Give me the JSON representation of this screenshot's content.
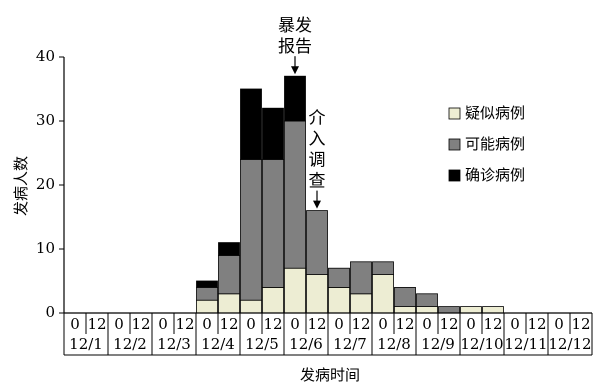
{
  "chart_data": {
    "type": "bar",
    "stacked": true,
    "title": "",
    "ylabel": "发病人数",
    "xlabel": "发病时间",
    "ylim": [
      0,
      40
    ],
    "yticks": [
      0,
      10,
      20,
      30,
      40
    ],
    "grid": false,
    "legend_position": "right",
    "half_day_labels": [
      "0",
      "12"
    ],
    "dates": [
      "12/1",
      "12/2",
      "12/3",
      "12/4",
      "12/5",
      "12/6",
      "12/7",
      "12/8",
      "12/9",
      "12/10",
      "12/11",
      "12/12"
    ],
    "categories": [
      "12/1 0",
      "12/1 12",
      "12/2 0",
      "12/2 12",
      "12/3 0",
      "12/3 12",
      "12/4 0",
      "12/4 12",
      "12/5 0",
      "12/5 12",
      "12/6 0",
      "12/6 12",
      "12/7 0",
      "12/7 12",
      "12/8 0",
      "12/8 12",
      "12/9 0",
      "12/9 12",
      "12/10 0",
      "12/10 12",
      "12/11 0",
      "12/11 12",
      "12/12 0",
      "12/12 12"
    ],
    "series": [
      {
        "name": "疑似病例",
        "color": "#ededd3",
        "values": [
          0,
          0,
          0,
          0,
          0,
          0,
          2,
          3,
          2,
          4,
          7,
          6,
          4,
          3,
          6,
          1,
          1,
          0,
          1,
          1,
          0,
          0,
          0,
          0
        ]
      },
      {
        "name": "可能病例",
        "color": "#808080",
        "values": [
          0,
          0,
          0,
          0,
          0,
          0,
          2,
          6,
          22,
          20,
          23,
          10,
          3,
          5,
          2,
          3,
          2,
          1,
          0,
          0,
          0,
          0,
          0,
          0
        ]
      },
      {
        "name": "确诊病例",
        "color": "#000000",
        "values": [
          0,
          0,
          0,
          0,
          0,
          0,
          1,
          2,
          11,
          8,
          7,
          0,
          0,
          0,
          0,
          0,
          0,
          0,
          0,
          0,
          0,
          0,
          0,
          0
        ]
      }
    ],
    "annotations": [
      {
        "text_lines": [
          "暴发",
          "报告"
        ],
        "category_index": 10
      },
      {
        "text_lines": [
          "介",
          "入",
          "调",
          "查"
        ],
        "category_index": 11
      }
    ]
  }
}
